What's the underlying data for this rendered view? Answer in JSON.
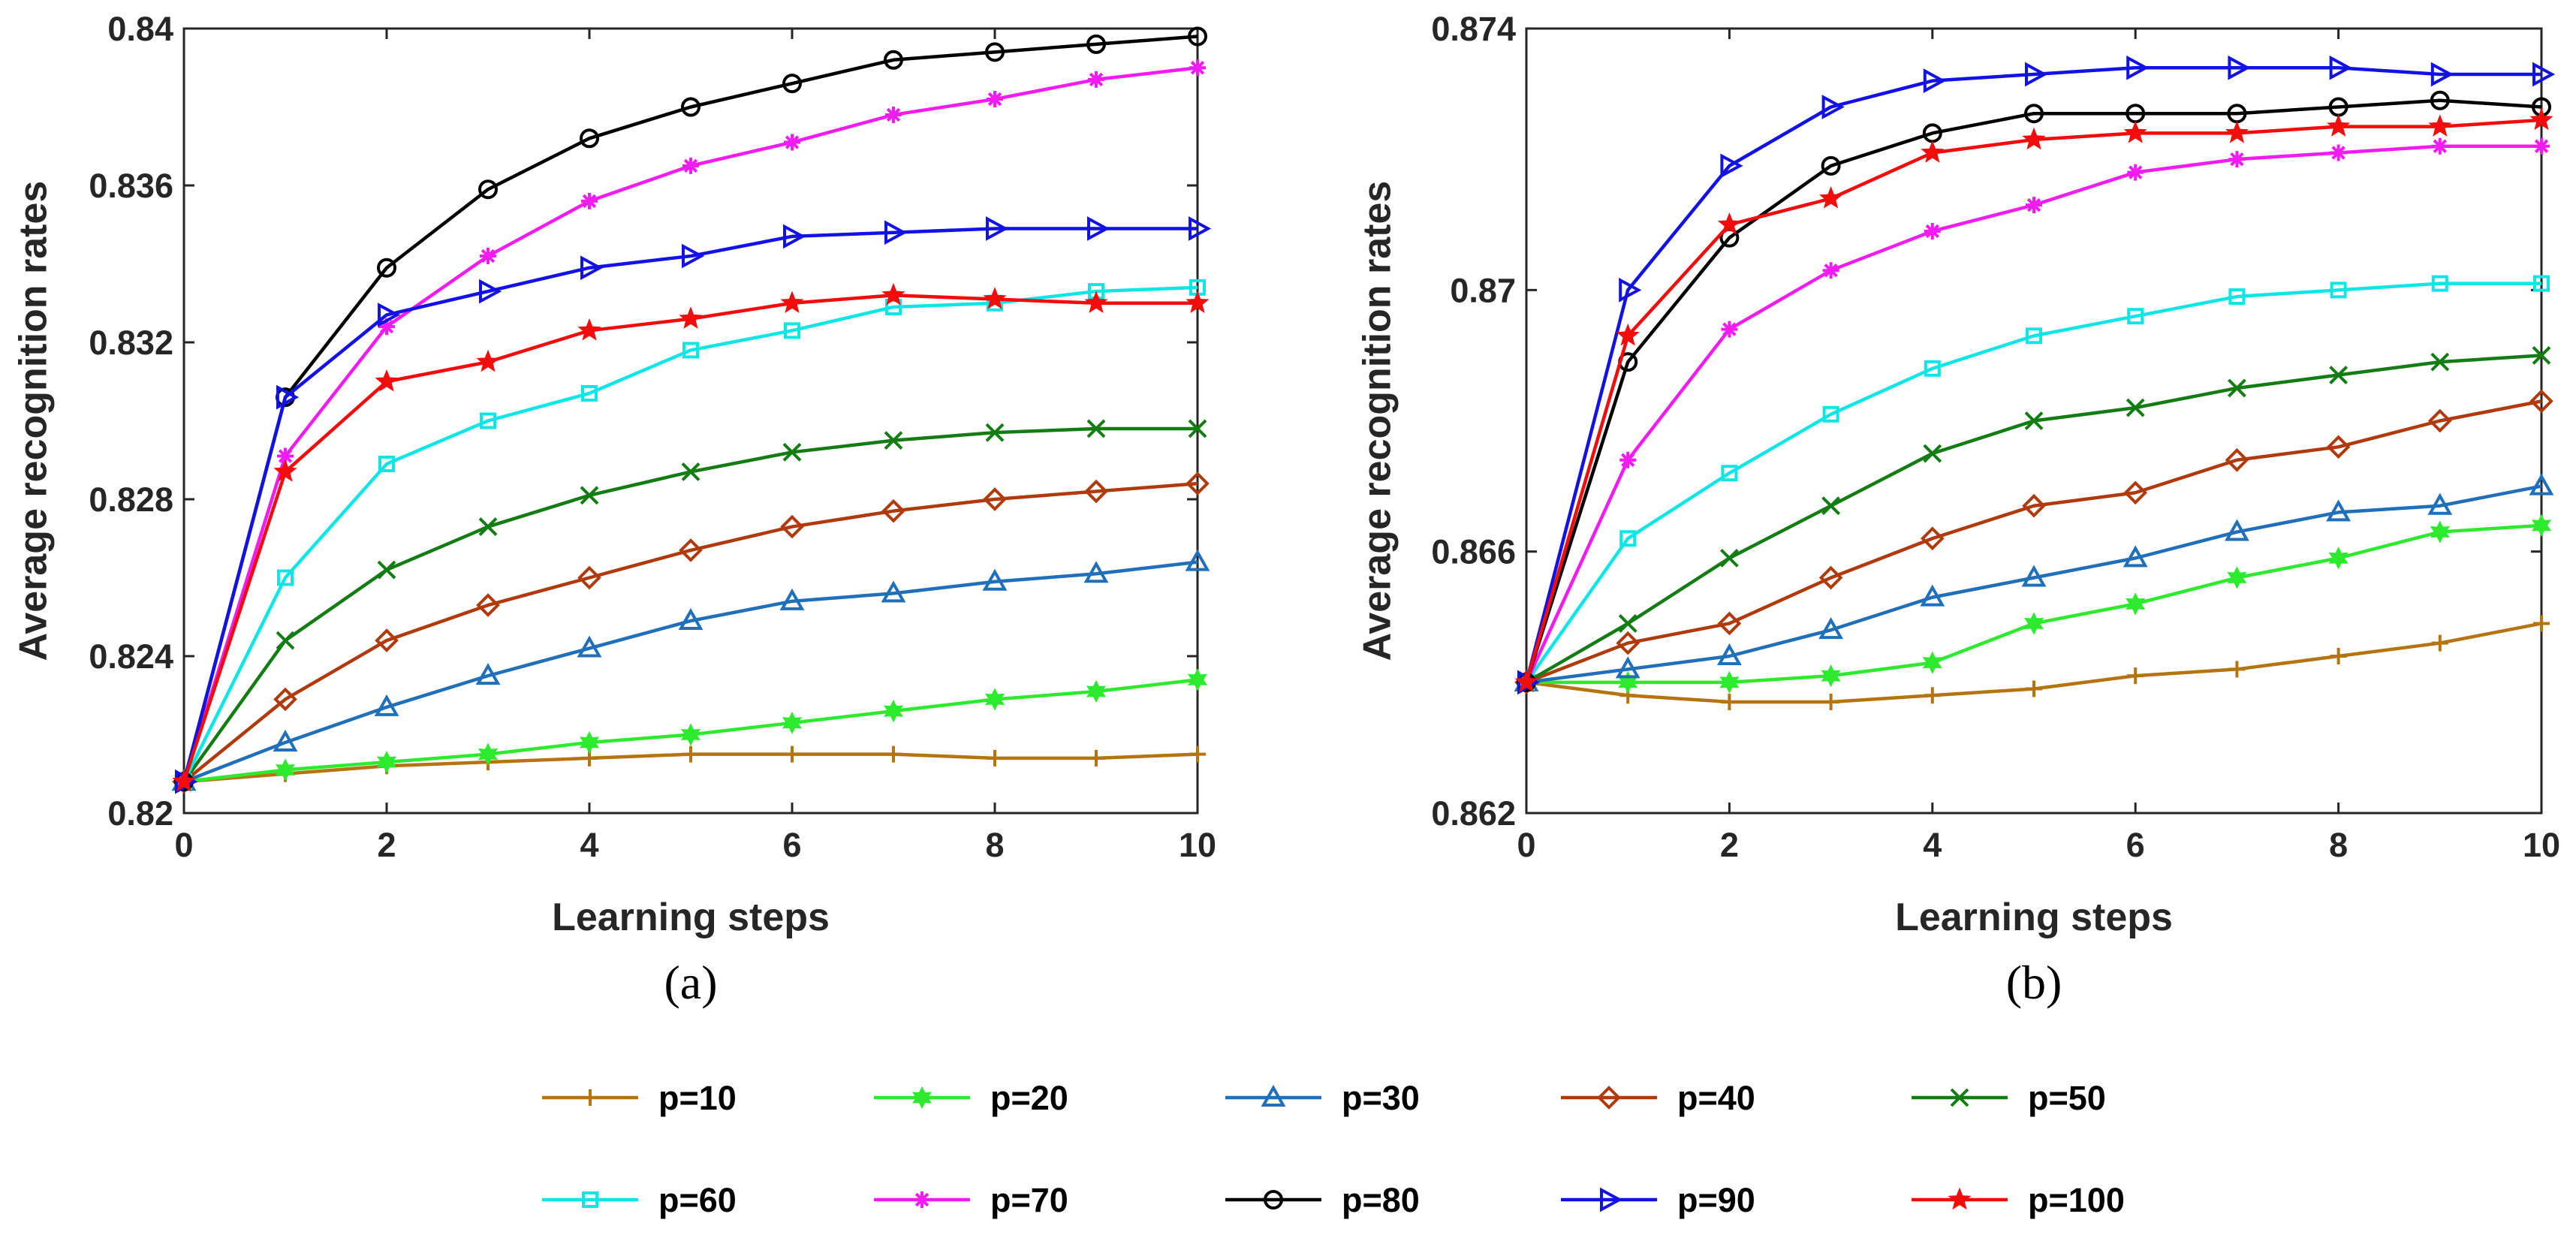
{
  "chart_data": [
    {
      "type": "line",
      "panel_label": "(a)",
      "xlabel": "Learning steps",
      "ylabel": "Average recognition rates",
      "xlim": [
        0,
        10
      ],
      "ylim": [
        0.82,
        0.84
      ],
      "xticks": [
        "0",
        "2",
        "4",
        "6",
        "8",
        "10"
      ],
      "yticks": [
        "0.82",
        "0.824",
        "0.828",
        "0.832",
        "0.836",
        "0.84"
      ],
      "x": [
        0,
        1,
        2,
        3,
        4,
        5,
        6,
        7,
        8,
        9,
        10
      ],
      "series": [
        {
          "name": "p=10",
          "values": [
            0.8208,
            0.821,
            0.8212,
            0.8213,
            0.8214,
            0.8215,
            0.8215,
            0.8215,
            0.8214,
            0.8214,
            0.8215
          ]
        },
        {
          "name": "p=20",
          "values": [
            0.8208,
            0.8211,
            0.8213,
            0.8215,
            0.8218,
            0.822,
            0.8223,
            0.8226,
            0.8229,
            0.8231,
            0.8234
          ]
        },
        {
          "name": "p=30",
          "values": [
            0.8208,
            0.8218,
            0.8227,
            0.8235,
            0.8242,
            0.8249,
            0.8254,
            0.8256,
            0.8259,
            0.8261,
            0.8264
          ]
        },
        {
          "name": "p=40",
          "values": [
            0.8208,
            0.8229,
            0.8244,
            0.8253,
            0.826,
            0.8267,
            0.8273,
            0.8277,
            0.828,
            0.8282,
            0.8284
          ]
        },
        {
          "name": "p=50",
          "values": [
            0.8208,
            0.8244,
            0.8262,
            0.8273,
            0.8281,
            0.8287,
            0.8292,
            0.8295,
            0.8297,
            0.8298,
            0.8298
          ]
        },
        {
          "name": "p=60",
          "values": [
            0.8208,
            0.826,
            0.8289,
            0.83,
            0.8307,
            0.8318,
            0.8323,
            0.8329,
            0.833,
            0.8333,
            0.8334
          ]
        },
        {
          "name": "p=70",
          "values": [
            0.8208,
            0.8291,
            0.8324,
            0.8342,
            0.8356,
            0.8365,
            0.8371,
            0.8378,
            0.8382,
            0.8387,
            0.839
          ]
        },
        {
          "name": "p=80",
          "values": [
            0.8208,
            0.8306,
            0.8339,
            0.8359,
            0.8372,
            0.838,
            0.8386,
            0.8392,
            0.8394,
            0.8396,
            0.8398
          ]
        },
        {
          "name": "p=90",
          "values": [
            0.8208,
            0.8306,
            0.8327,
            0.8333,
            0.8339,
            0.8342,
            0.8347,
            0.8348,
            0.8349,
            0.8349,
            0.8349
          ]
        },
        {
          "name": "p=100",
          "values": [
            0.8208,
            0.8287,
            0.831,
            0.8315,
            0.8323,
            0.8326,
            0.833,
            0.8332,
            0.8331,
            0.833,
            0.833
          ]
        }
      ]
    },
    {
      "type": "line",
      "panel_label": "(b)",
      "xlabel": "Learning steps",
      "ylabel": "Average recognition rates",
      "xlim": [
        0,
        10
      ],
      "ylim": [
        0.862,
        0.874
      ],
      "xticks": [
        "0",
        "2",
        "4",
        "6",
        "8",
        "10"
      ],
      "yticks": [
        "0.862",
        "0.866",
        "0.87",
        "0.874"
      ],
      "x": [
        0,
        1,
        2,
        3,
        4,
        5,
        6,
        7,
        8,
        9,
        10
      ],
      "series": [
        {
          "name": "p=10",
          "values": [
            0.864,
            0.8638,
            0.8637,
            0.8637,
            0.8638,
            0.8639,
            0.8641,
            0.8642,
            0.8644,
            0.8646,
            0.8649
          ]
        },
        {
          "name": "p=20",
          "values": [
            0.864,
            0.864,
            0.864,
            0.8641,
            0.8643,
            0.8649,
            0.8652,
            0.8656,
            0.8659,
            0.8663,
            0.8664
          ]
        },
        {
          "name": "p=30",
          "values": [
            0.864,
            0.8642,
            0.8644,
            0.8648,
            0.8653,
            0.8656,
            0.8659,
            0.8663,
            0.8666,
            0.8667,
            0.867
          ]
        },
        {
          "name": "p=40",
          "values": [
            0.864,
            0.8646,
            0.8649,
            0.8656,
            0.8662,
            0.8667,
            0.8669,
            0.8674,
            0.8676,
            0.868,
            0.8683
          ]
        },
        {
          "name": "p=50",
          "values": [
            0.864,
            0.8649,
            0.8659,
            0.8667,
            0.8675,
            0.868,
            0.8682,
            0.8685,
            0.8687,
            0.8689,
            0.869
          ]
        },
        {
          "name": "p=60",
          "values": [
            0.864,
            0.8662,
            0.8672,
            0.8681,
            0.8688,
            0.8693,
            0.8696,
            0.8699,
            0.87,
            0.8701,
            0.8701
          ]
        },
        {
          "name": "p=70",
          "values": [
            0.864,
            0.8674,
            0.8694,
            0.8703,
            0.8709,
            0.8713,
            0.8718,
            0.872,
            0.8721,
            0.8722,
            0.8722
          ]
        },
        {
          "name": "p=80",
          "values": [
            0.864,
            0.8689,
            0.8708,
            0.8719,
            0.8724,
            0.8727,
            0.8727,
            0.8727,
            0.8728,
            0.8729,
            0.8728
          ]
        },
        {
          "name": "p=90",
          "values": [
            0.864,
            0.87,
            0.8719,
            0.8728,
            0.8732,
            0.8733,
            0.8734,
            0.8734,
            0.8734,
            0.8733,
            0.8733
          ]
        },
        {
          "name": "p=100",
          "values": [
            0.864,
            0.8693,
            0.871,
            0.8714,
            0.8721,
            0.8723,
            0.8724,
            0.8724,
            0.8725,
            0.8725,
            0.8726
          ]
        }
      ]
    }
  ],
  "legend": {
    "placement": "bottom",
    "entries": [
      {
        "label": "p=10",
        "color": "#b5740f",
        "marker": "plus"
      },
      {
        "label": "p=20",
        "color": "#2eea2e",
        "marker": "hexagram"
      },
      {
        "label": "p=30",
        "color": "#1f6fba",
        "marker": "triangle-up"
      },
      {
        "label": "p=40",
        "color": "#b03a0c",
        "marker": "diamond"
      },
      {
        "label": "p=50",
        "color": "#137d13",
        "marker": "x"
      },
      {
        "label": "p=60",
        "color": "#0ee6e6",
        "marker": "square"
      },
      {
        "label": "p=70",
        "color": "#f21cf2",
        "marker": "asterisk"
      },
      {
        "label": "p=80",
        "color": "#000000",
        "marker": "circle"
      },
      {
        "label": "p=90",
        "color": "#1212e6",
        "marker": "triangle-right"
      },
      {
        "label": "p=100",
        "color": "#f20c0c",
        "marker": "pentagram"
      }
    ]
  }
}
